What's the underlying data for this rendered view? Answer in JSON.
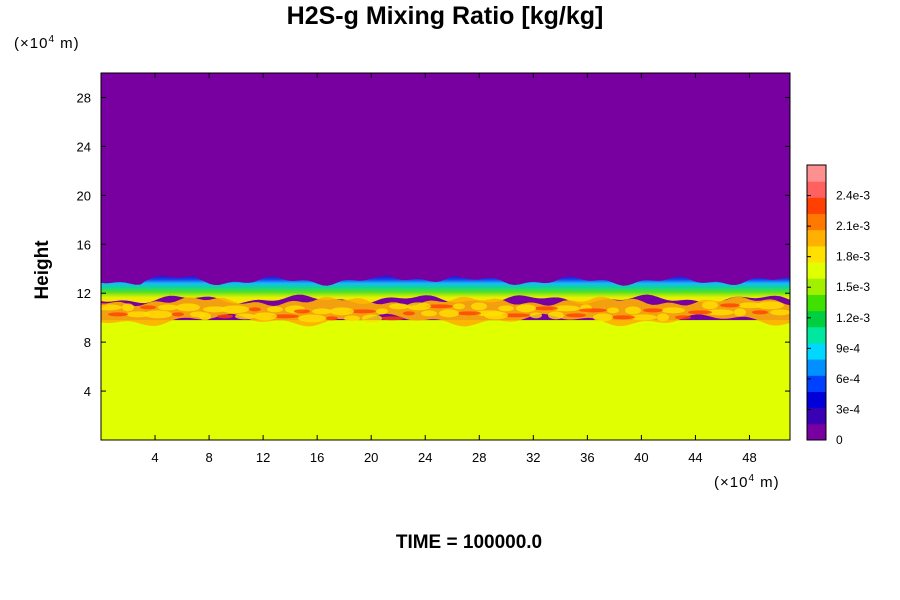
{
  "chart_data": {
    "type": "heatmap",
    "title": "H2S-g Mixing Ratio [kg/kg]",
    "ylabel": "Height",
    "xlabel": "",
    "y_unit": {
      "prefix": "(×10",
      "exponent": "4",
      "suffix": " m)"
    },
    "x_unit": {
      "prefix": "(×10",
      "exponent": "4",
      "suffix": " m)"
    },
    "xlim": [
      0,
      51
    ],
    "ylim": [
      0,
      30
    ],
    "x_ticks": [
      4,
      8,
      12,
      16,
      20,
      24,
      28,
      32,
      36,
      40,
      44,
      48
    ],
    "y_ticks": [
      4,
      8,
      12,
      16,
      20,
      24,
      28
    ],
    "x_tick_labels": [
      "4",
      "8",
      "12",
      "16",
      "20",
      "24",
      "28",
      "32",
      "36",
      "40",
      "44",
      "48"
    ],
    "y_tick_labels": [
      "4",
      "8",
      "12",
      "16",
      "20",
      "24",
      "28"
    ],
    "colorbar": {
      "min": 0,
      "max": 0.0027,
      "ticks": [
        0,
        0.0003,
        0.0006,
        0.0009,
        0.0012,
        0.0015,
        0.0018,
        0.0021,
        0.0024
      ],
      "tick_labels": [
        "0",
        "3e-4",
        "6e-4",
        "9e-4",
        "1.2e-3",
        "1.5e-3",
        "1.8e-3",
        "2.1e-3",
        "2.4e-3"
      ],
      "colormap": [
        "#7800a0",
        "#3a00b4",
        "#0000d8",
        "#0040ff",
        "#0090ff",
        "#00d8ff",
        "#00e8a0",
        "#00d040",
        "#40e000",
        "#a0f000",
        "#e0ff00",
        "#ffe000",
        "#ffb000",
        "#ff7800",
        "#ff4000",
        "#ff6060",
        "#ff9090"
      ]
    },
    "field_description_values": {
      "upper_region_value": 0,
      "lower_region_value": 0.00172,
      "enriched_layer_height_range": [
        9,
        11.5
      ],
      "enriched_layer_peak_value": 0.0021,
      "gradient_top_height": 13,
      "gradient_bottom_height": 11.5
    }
  },
  "footer": {
    "text": "TIME = 100000.0"
  }
}
